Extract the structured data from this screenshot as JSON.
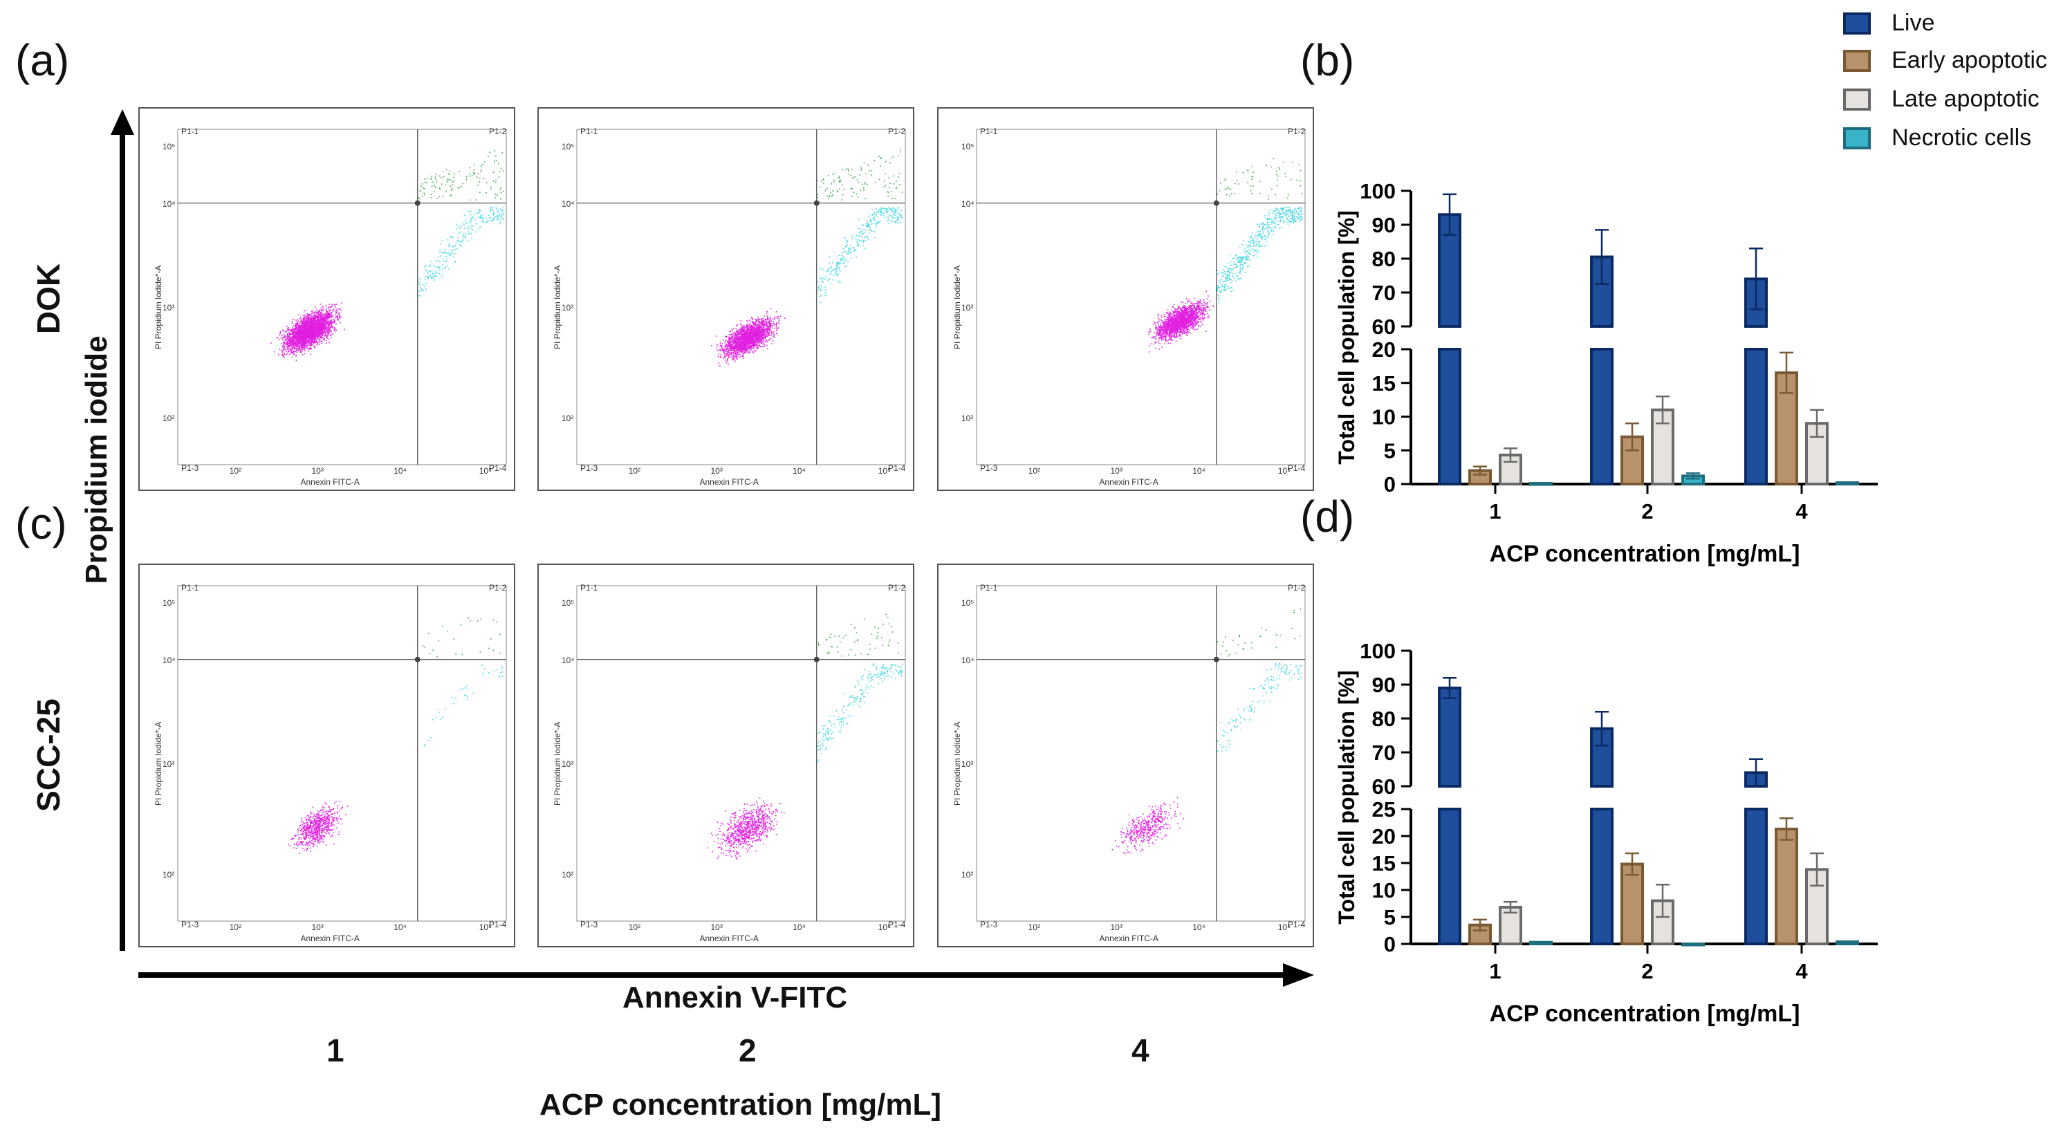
{
  "panels": {
    "a": "(a)",
    "b": "(b)",
    "c": "(c)",
    "d": "(d)"
  },
  "row_labels": {
    "dok": "DOK",
    "scc": "SCC-25"
  },
  "axes": {
    "y_main": "Propidium iodide",
    "x_main": "Annexin V-FITC",
    "conc_title": "ACP concentration [mg/mL]"
  },
  "concentrations": [
    "1",
    "2",
    "4"
  ],
  "flow": {
    "quadrants": [
      "P1-1",
      "P1-2",
      "P1-3",
      "P1-4"
    ],
    "x_axis_label": "Annexin FITC-A",
    "y_axis_label": "PI Propidium Iodide*-A",
    "x_ticks": [
      "10²",
      "10³",
      "10⁴",
      "10⁵"
    ],
    "y_ticks": [
      "10²",
      "10³",
      "10⁴",
      "10⁵"
    ]
  },
  "legend": [
    {
      "label": "Live",
      "fill": "#1f4e9c",
      "stroke": "#0b2a63"
    },
    {
      "label": "Early apoptotic",
      "fill": "#b8926a",
      "stroke": "#7a5a35"
    },
    {
      "label": "Late apoptotic",
      "fill": "#e6e3de",
      "stroke": "#6a6a6a"
    },
    {
      "label": "Necrotic cells",
      "fill": "#3ab3c9",
      "stroke": "#1d6f80"
    }
  ],
  "chart_data": [
    {
      "type": "bar",
      "panel": "b",
      "title": "",
      "categories": [
        "1",
        "2",
        "4"
      ],
      "xlabel": "ACP concentration [mg/mL]",
      "ylabel": "Total cell population [%]",
      "y_segments": [
        {
          "range": [
            0,
            20
          ],
          "ticks": [
            "0",
            "5",
            "10",
            "15",
            "20"
          ]
        },
        {
          "range": [
            60,
            100
          ],
          "ticks": [
            "60",
            "70",
            "80",
            "90",
            "100"
          ]
        }
      ],
      "series": [
        {
          "name": "Live",
          "values": [
            93,
            80.5,
            74
          ],
          "errors": [
            6,
            8,
            9
          ]
        },
        {
          "name": "Early apoptotic",
          "values": [
            2,
            7,
            16.5
          ],
          "errors": [
            0.6,
            2,
            3
          ]
        },
        {
          "name": "Late apoptotic",
          "values": [
            4.3,
            11,
            9
          ],
          "errors": [
            1,
            2,
            2
          ]
        },
        {
          "name": "Necrotic cells",
          "values": [
            0.1,
            1.2,
            0.2
          ],
          "errors": [
            0,
            0.4,
            0
          ]
        }
      ]
    },
    {
      "type": "bar",
      "panel": "d",
      "title": "",
      "categories": [
        "1",
        "2",
        "4"
      ],
      "xlabel": "ACP concentration [mg/mL]",
      "ylabel": "Total cell population [%]",
      "y_segments": [
        {
          "range": [
            0,
            25
          ],
          "ticks": [
            "0",
            "5",
            "10",
            "15",
            "20",
            "25"
          ]
        },
        {
          "range": [
            60,
            100
          ],
          "ticks": [
            "60",
            "70",
            "80",
            "90",
            "100"
          ]
        }
      ],
      "series": [
        {
          "name": "Live",
          "values": [
            89,
            77,
            64
          ],
          "errors": [
            3,
            5,
            4
          ]
        },
        {
          "name": "Early apoptotic",
          "values": [
            3.5,
            14.8,
            21.3
          ],
          "errors": [
            1,
            2,
            2
          ]
        },
        {
          "name": "Late apoptotic",
          "values": [
            6.8,
            8,
            13.8
          ],
          "errors": [
            1,
            3,
            3
          ]
        },
        {
          "name": "Necrotic cells",
          "values": [
            0.3,
            0,
            0.4
          ],
          "errors": [
            0,
            0,
            0
          ]
        }
      ]
    }
  ]
}
